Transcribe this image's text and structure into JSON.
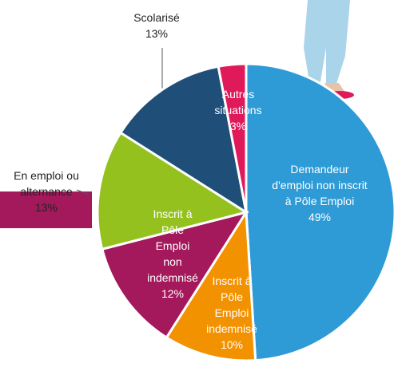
{
  "chart_data": {
    "type": "pie",
    "categories": [
      "Demandeur d'emploi non inscrit à Pôle Emploi",
      "Inscrit à Pôle Emploi indemnisé",
      "Inscrit à Pôle Emploi non indemnisé",
      "En emploi ou alternance",
      "Scolarisé",
      "Autres situations"
    ],
    "values": [
      49,
      10,
      12,
      13,
      13,
      3
    ],
    "value_labels": [
      "49%",
      "10%",
      "12%",
      "13%",
      "13%",
      "3%"
    ],
    "colors": [
      "#2e9bd6",
      "#f39200",
      "#a3195b",
      "#95c11f",
      "#1f4e79",
      "#e0195a"
    ]
  }
}
